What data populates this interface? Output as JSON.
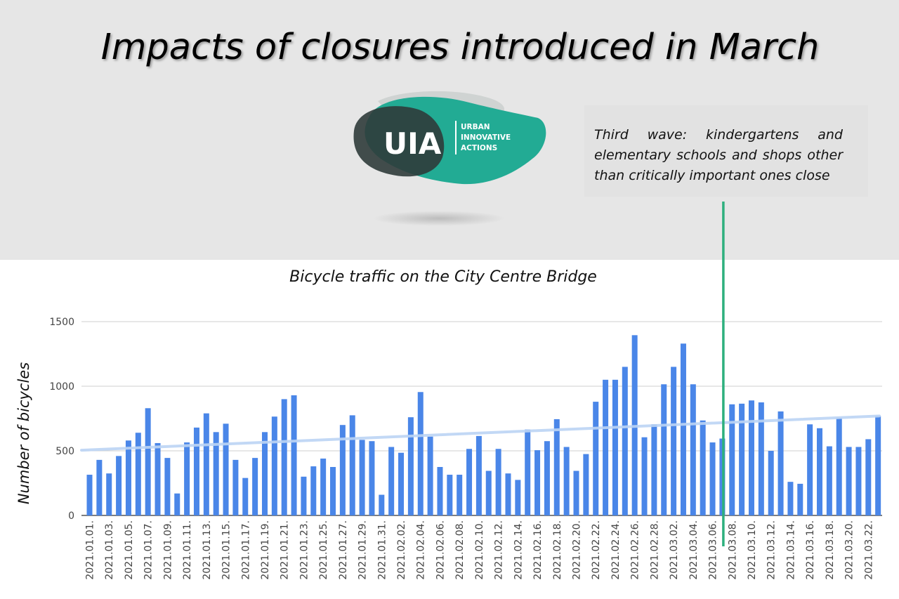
{
  "title": "Impacts of closures introduced in March",
  "logo": {
    "wordmark": "UIA",
    "lines": [
      "URBAN",
      "INNOVATIVE",
      "ACTIONS"
    ],
    "colors": {
      "teal": "#22ab94",
      "dark": "#2f3b3a",
      "grey": "#cfd3d2"
    }
  },
  "annotation": {
    "text": "Third wave: kindergartens and elementary schools and shops other than critically important ones close",
    "line_color": "#2eb07e",
    "marker_date": "2021.03.07."
  },
  "chart_data": {
    "type": "bar",
    "title": "Bicycle traffic on the City Centre Bridge",
    "xlabel": "",
    "ylabel": "Number of bicycles",
    "ylim": [
      0,
      1500
    ],
    "yticks": [
      0,
      500,
      1000,
      1500
    ],
    "bar_color": "#4a86e8",
    "trend_color": "#bcd4f5",
    "trend": [
      505,
      770
    ],
    "categories": [
      "2021.01.01.",
      "2021.01.02.",
      "2021.01.03.",
      "2021.01.04.",
      "2021.01.05.",
      "2021.01.06.",
      "2021.01.07.",
      "2021.01.08.",
      "2021.01.09.",
      "2021.01.10.",
      "2021.01.11.",
      "2021.01.12.",
      "2021.01.13.",
      "2021.01.14.",
      "2021.01.15.",
      "2021.01.16.",
      "2021.01.17.",
      "2021.01.18.",
      "2021.01.19.",
      "2021.01.20.",
      "2021.01.21.",
      "2021.01.22.",
      "2021.01.23.",
      "2021.01.24.",
      "2021.01.25.",
      "2021.01.26.",
      "2021.01.27.",
      "2021.01.28.",
      "2021.01.29.",
      "2021.01.30.",
      "2021.01.31.",
      "2021.02.01.",
      "2021.02.02.",
      "2021.02.03.",
      "2021.02.04.",
      "2021.02.05.",
      "2021.02.06.",
      "2021.02.07.",
      "2021.02.08.",
      "2021.02.09.",
      "2021.02.10.",
      "2021.02.11.",
      "2021.02.12.",
      "2021.02.13.",
      "2021.02.14.",
      "2021.02.15.",
      "2021.02.16.",
      "2021.02.17.",
      "2021.02.18.",
      "2021.02.19.",
      "2021.02.20.",
      "2021.02.21.",
      "2021.02.22.",
      "2021.02.23.",
      "2021.02.24.",
      "2021.02.25.",
      "2021.02.26.",
      "2021.02.27.",
      "2021.02.28.",
      "2021.03.01.",
      "2021.03.02.",
      "2021.03.03.",
      "2021.03.04.",
      "2021.03.05.",
      "2021.03.06.",
      "2021.03.07.",
      "2021.03.08.",
      "2021.03.09.",
      "2021.03.10.",
      "2021.03.11.",
      "2021.03.12.",
      "2021.03.13.",
      "2021.03.14.",
      "2021.03.15.",
      "2021.03.16.",
      "2021.03.17.",
      "2021.03.18.",
      "2021.03.19.",
      "2021.03.20.",
      "2021.03.21.",
      "2021.03.22.",
      "2021.03.23."
    ],
    "tick_labels": [
      "2021.01.01.",
      "2021.01.03.",
      "2021.01.05.",
      "2021.01.07.",
      "2021.01.09.",
      "2021.01.11.",
      "2021.01.13.",
      "2021.01.15.",
      "2021.01.17.",
      "2021.01.19.",
      "2021.01.21.",
      "2021.01.23.",
      "2021.01.25.",
      "2021.01.27.",
      "2021.01.29.",
      "2021.01.31.",
      "2021.02.02.",
      "2021.02.04.",
      "2021.02.06.",
      "2021.02.08.",
      "2021.02.10.",
      "2021.02.12.",
      "2021.02.14.",
      "2021.02.16.",
      "2021.02.18.",
      "2021.02.20.",
      "2021.02.22.",
      "2021.02.24.",
      "2021.02.26.",
      "2021.02.28.",
      "2021.03.02.",
      "2021.03.04.",
      "2021.03.06.",
      "2021.03.08.",
      "2021.03.10.",
      "2021.03.12.",
      "2021.03.14.",
      "2021.03.16.",
      "2021.03.18.",
      "2021.03.20.",
      "2021.03.22."
    ],
    "values": [
      315,
      430,
      325,
      460,
      580,
      640,
      830,
      560,
      445,
      170,
      565,
      680,
      790,
      645,
      710,
      430,
      290,
      445,
      645,
      765,
      900,
      930,
      300,
      380,
      440,
      375,
      700,
      775,
      585,
      575,
      160,
      530,
      485,
      760,
      955,
      610,
      375,
      315,
      315,
      515,
      615,
      345,
      515,
      325,
      275,
      665,
      505,
      575,
      745,
      530,
      345,
      475,
      880,
      1050,
      1050,
      1150,
      1395,
      605,
      705,
      1015,
      1150,
      1330,
      1015,
      735,
      565,
      595,
      860,
      865,
      890,
      875,
      500,
      805,
      260,
      245,
      705,
      675,
      535,
      755,
      530,
      530,
      590,
      770
    ]
  }
}
